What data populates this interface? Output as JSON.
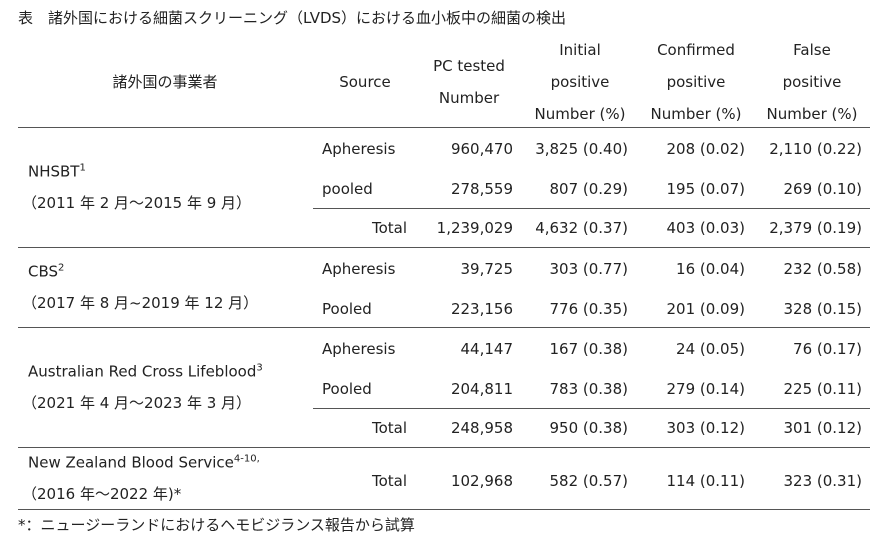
{
  "title": "表　諸外国における細菌スクリーニング（LVDS）における血小板中の細菌の検出",
  "table": {
    "header": [
      [
        "諸外国の事業者"
      ],
      [
        "Source"
      ],
      [
        "PC tested",
        "Number"
      ],
      [
        "Initial",
        "positive",
        "Number (%)"
      ],
      [
        "Confirmed",
        "positive",
        "Number (%)"
      ],
      [
        "False",
        "positive",
        "Number (%)"
      ]
    ],
    "groups": [
      {
        "provider": "NHSBT",
        "sup": "1",
        "period": "（2011 年 2 月～2015 年 9 月）",
        "rows": [
          [
            "Apheresis",
            "960,470",
            "3,825 (0.40)",
            "208 (0.02)",
            "2,110 (0.22)"
          ],
          [
            "pooled",
            "278,559",
            "807 (0.29)",
            "195 (0.07)",
            "269 (0.10)"
          ]
        ],
        "total": [
          "Total",
          "1,239,029",
          "4,632 (0.37)",
          "403 (0.03)",
          "2,379 (0.19)"
        ]
      },
      {
        "provider": "CBS",
        "sup": "2",
        "period": "（2017 年 8 月~2019 年 12 月）",
        "rows": [
          [
            "Apheresis",
            "39,725",
            "303 (0.77)",
            "16 (0.04)",
            "232 (0.58)"
          ],
          [
            "Pooled",
            "223,156",
            "776 (0.35)",
            "201 (0.09)",
            "328 (0.15)"
          ]
        ]
      },
      {
        "provider": "Australian Red Cross Lifeblood",
        "sup": "3",
        "period": "（2021 年 4 月～2023 年 3 月）",
        "rows": [
          [
            "Apheresis",
            "44,147",
            "167 (0.38)",
            "24 (0.05)",
            "76 (0.17)"
          ],
          [
            "Pooled",
            "204,811",
            "783 (0.38)",
            "279 (0.14)",
            "225 (0.11)"
          ]
        ],
        "total": [
          "Total",
          "248,958",
          "950 (0.38)",
          "303 (0.12)",
          "301 (0.12)"
        ]
      },
      {
        "provider": "New Zealand Blood Service",
        "sup": "4-10,",
        "period": "（2016 年～2022 年)*",
        "rows": [],
        "total": [
          "Total",
          "102,968",
          "582 (0.57)",
          "114 (0.11)",
          "323 (0.31)"
        ]
      }
    ]
  },
  "footnote": "*：ニュージーランドにおけるヘモビジランス報告から試算"
}
